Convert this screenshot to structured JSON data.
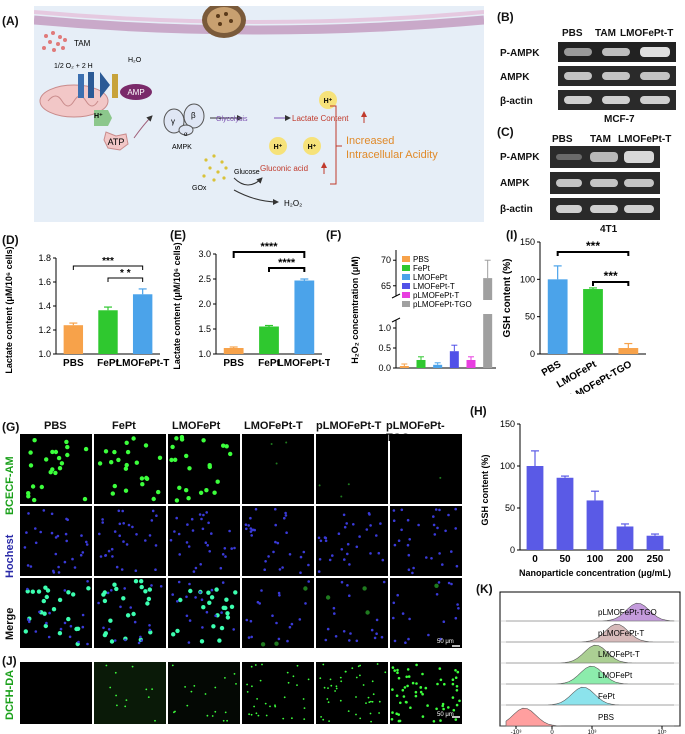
{
  "panels": {
    "A": "(A)",
    "B": "(B)",
    "C": "(C)",
    "D": "(D)",
    "E": "(E)",
    "F": "(F)",
    "G": "(G)",
    "H": "(H)",
    "I": "(I)",
    "J": "(J)",
    "K": "(K)"
  },
  "schematic": {
    "tam": "TAM",
    "o2_label": "1/2 O₂ + 2 H",
    "h2o": "H₂O",
    "amp": "AMP",
    "atp": "ATP",
    "hplus": "H⁺",
    "ampk": "AMPK",
    "gamma": "γ",
    "beta": "β",
    "alpha": "α",
    "glycolysis": "Glycolysis",
    "lactate": "Lactate Content",
    "gluconic": "Gluconic acid",
    "increased1": "Increased",
    "increased2": "Intracellular Acidity",
    "glucose": "Glucose",
    "gox": "GOx",
    "h2o2": "H₂O₂"
  },
  "western_b": {
    "cols": [
      "PBS",
      "TAM",
      "LMOFePt-T"
    ],
    "rows": [
      "P-AMPK",
      "AMPK",
      "β-actin"
    ],
    "cell": "MCF-7"
  },
  "western_c": {
    "cols": [
      "PBS",
      "TAM",
      "LMOFePt-T"
    ],
    "rows": [
      "P-AMPK",
      "AMPK",
      "β-actin"
    ],
    "cell": "4T1"
  },
  "micro": {
    "cols": [
      "PBS",
      "FePt",
      "LMOFePt",
      "LMOFePt-T",
      "pLMOFePt-T",
      "pLMOFePt-TGO"
    ],
    "rows": [
      "BCECF-AM",
      "Hochest",
      "Merge"
    ],
    "dcfh": "DCFH-DA",
    "scale": "50 μm"
  },
  "colors": {
    "orange": "#f7a24a",
    "green": "#2fc82f",
    "blue": "#4ba3ea",
    "indigo": "#5151e8",
    "magenta": "#e83ee0",
    "gray": "#a0a0a0",
    "hbar": "#5a5ae6"
  },
  "chart_data": [
    {
      "id": "D",
      "type": "bar",
      "categories": [
        "PBS",
        "FePt",
        "LMOFePt-T"
      ],
      "values": [
        1.27,
        1.41,
        1.56
      ],
      "errors": [
        0.02,
        0.03,
        0.05
      ],
      "ylabel": "Lactate content (μM/10⁶ cells)",
      "ylim": [
        1.0,
        1.9
      ],
      "yticks": [
        "1.0",
        "1.2",
        "1.4",
        "1.6",
        "1.8"
      ],
      "significance": [
        "***",
        "* *"
      ]
    },
    {
      "id": "E",
      "type": "bar",
      "categories": [
        "PBS",
        "FePt",
        "LMOFePt-T"
      ],
      "values": [
        1.12,
        1.55,
        2.47
      ],
      "errors": [
        0.02,
        0.02,
        0.03
      ],
      "ylabel": "Lactate content (μM/10⁶ cells)",
      "ylim": [
        1.0,
        3.0
      ],
      "yticks": [
        "1.0",
        "1.5",
        "2.0",
        "2.5",
        "3.0"
      ],
      "significance": [
        "****",
        "****"
      ]
    },
    {
      "id": "F",
      "type": "bar",
      "categories": [
        "PBS",
        "FePt",
        "LMOFePt",
        "LMOFePt-T",
        "pLMOFePt-T",
        "pLMOFePt-TGO"
      ],
      "values": [
        0.05,
        0.2,
        0.08,
        0.42,
        0.2,
        66.5
      ],
      "errors": [
        0.05,
        0.08,
        0.05,
        0.15,
        0.08,
        3.5
      ],
      "ylabel": "H₂O₂ concemtration (μM)",
      "yticks_upper": [
        "65",
        "70"
      ],
      "yticks_lower": [
        "0.0",
        "0.5",
        "1.0"
      ],
      "legend": [
        "PBS",
        "FePt",
        "LMOFePt",
        "LMOFePt-T",
        "pLMOFePt-T",
        "pLMOFePt-TGO"
      ]
    },
    {
      "id": "I",
      "type": "bar",
      "categories": [
        "PBS",
        "LMOFePt",
        "pLMOFePt-TGO"
      ],
      "values": [
        100,
        87,
        8
      ],
      "errors": [
        18,
        1.5,
        6
      ],
      "ylabel": "GSH content (%)",
      "ylim": [
        0,
        150
      ],
      "yticks": [
        "0",
        "50",
        "100",
        "150"
      ],
      "significance": [
        "***",
        "***"
      ]
    },
    {
      "id": "H",
      "type": "bar",
      "categories": [
        "0",
        "50",
        "100",
        "200",
        "250"
      ],
      "values": [
        100,
        86,
        59,
        28,
        17
      ],
      "errors": [
        18,
        2,
        11,
        3,
        2
      ],
      "xlabel": "Nanoparticle concentration (μg/mL)",
      "ylabel": "GSH content (%)",
      "ylim": [
        0,
        150
      ],
      "yticks": [
        "0",
        "50",
        "100",
        "150"
      ]
    },
    {
      "id": "K",
      "type": "area",
      "series": [
        "PBS",
        "FePt",
        "LMOFePt",
        "LMOFePt-T",
        "pLMOFePt-T",
        "pLMOFePt-TGO"
      ],
      "xticks": [
        "-10³",
        "0",
        "10³",
        "10⁵"
      ],
      "peaks": [
        0.2,
        1.6,
        1.8,
        1.9,
        2.4,
        2.9
      ]
    }
  ]
}
